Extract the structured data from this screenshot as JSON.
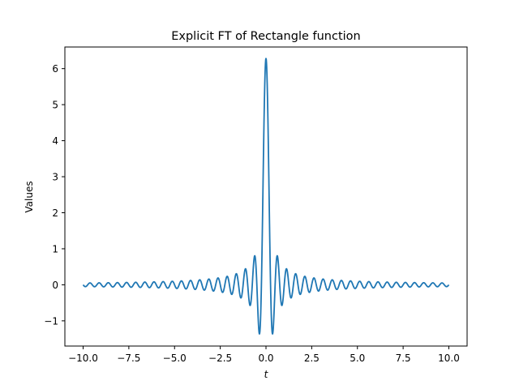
{
  "chart_data": {
    "type": "line",
    "title": "Explicit FT of Rectangle function",
    "xlabel": "t",
    "ylabel": "Values",
    "xlim": [
      -10.0,
      10.0
    ],
    "ylim": [
      -1.7,
      6.6
    ],
    "x_ticks": [
      -10.0,
      -7.5,
      -5.0,
      -2.5,
      0.0,
      2.5,
      5.0,
      7.5,
      10.0
    ],
    "x_tick_labels": [
      "−10.0",
      "−7.5",
      "−5.0",
      "−2.5",
      "0.0",
      "2.5",
      "5.0",
      "7.5",
      "10.0"
    ],
    "y_ticks": [
      -1,
      0,
      1,
      2,
      3,
      4,
      5,
      6
    ],
    "y_tick_labels": [
      "−1",
      "0",
      "1",
      "2",
      "3",
      "4",
      "5",
      "6"
    ],
    "grid": false,
    "series": [
      {
        "color": "#1f77b4",
        "x": [
          -10.0,
          -9.5,
          -9.0,
          -8.5,
          -8.0,
          -7.5,
          -7.0,
          -6.5,
          -6.0,
          -5.5,
          -5.0,
          -4.5,
          -4.0,
          -3.5,
          -3.0,
          -2.5,
          -2.0,
          -1.75,
          -1.5,
          -1.25,
          -1.0,
          -0.8,
          -0.6,
          -0.45,
          -0.3,
          -0.15,
          0.0,
          0.15,
          0.3,
          0.45,
          0.6,
          0.8,
          1.0,
          1.25,
          1.5,
          1.75,
          2.0,
          2.5,
          3.0,
          3.5,
          4.0,
          4.5,
          5.0,
          5.5,
          6.0,
          6.5,
          7.0,
          7.5,
          8.0,
          8.5,
          9.0,
          9.5,
          10.0
        ],
        "y": [
          0.02,
          -0.02,
          0.03,
          -0.03,
          0.03,
          -0.03,
          0.04,
          -0.04,
          0.05,
          -0.05,
          0.06,
          -0.06,
          0.08,
          -0.09,
          0.11,
          -0.13,
          0.17,
          -0.2,
          0.25,
          -0.3,
          0.36,
          -0.5,
          0.6,
          -1.0,
          0.78,
          -1.38,
          6.28,
          -1.38,
          0.78,
          -1.0,
          0.6,
          -0.5,
          0.36,
          -0.3,
          0.25,
          -0.2,
          0.17,
          -0.13,
          0.11,
          -0.09,
          0.08,
          -0.06,
          0.06,
          -0.05,
          0.05,
          -0.04,
          0.04,
          -0.03,
          0.03,
          -0.03,
          0.03,
          -0.02,
          0.02
        ]
      }
    ]
  }
}
